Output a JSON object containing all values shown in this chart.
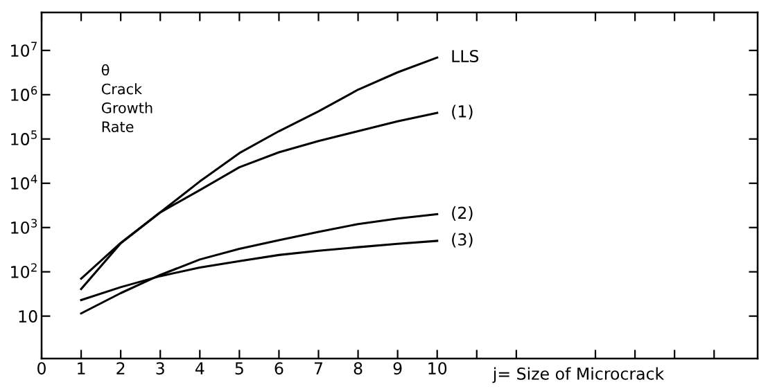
{
  "chart_data": {
    "type": "line",
    "ylabel": "θ\nCrack\nGrowth\nRate",
    "xlabel": "j= Size of Microcrack",
    "x": [
      1,
      2,
      3,
      4,
      5,
      6,
      7,
      8,
      9,
      10
    ],
    "series": [
      {
        "name": "LLS",
        "color": "#000000",
        "values": [
          41,
          440,
          2200,
          11000,
          48000,
          150000,
          420000,
          1300000,
          3200000,
          6900000
        ]
      },
      {
        "name": "(1)",
        "color": "#000000",
        "values": [
          70,
          450,
          2200,
          7000,
          23000,
          50000,
          90000,
          150000,
          250000,
          390000
        ]
      },
      {
        "name": "(2)",
        "color": "#000000",
        "values": [
          11.5,
          33,
          85,
          190,
          330,
          520,
          800,
          1200,
          1600,
          2000
        ]
      },
      {
        "name": "(3)",
        "color": "#000000",
        "values": [
          23,
          45,
          80,
          125,
          175,
          240,
          300,
          360,
          430,
          500
        ]
      }
    ],
    "log": "y",
    "xlim": [
      0,
      18.1
    ],
    "ylim": [
      1.1,
      72000000
    ],
    "xticks": [
      0,
      1,
      2,
      3,
      4,
      5,
      6,
      7,
      8,
      9,
      10,
      {
        "value": 11,
        "label": null
      },
      {
        "value": 12,
        "label": null
      },
      {
        "value": 14,
        "label": null
      },
      {
        "value": 15,
        "label": null
      },
      {
        "value": 16,
        "label": null
      },
      {
        "value": 17,
        "label": null
      }
    ],
    "yticks": [
      10,
      {
        "value": 100,
        "label": "10$^{2}$"
      },
      {
        "value": 1000,
        "label": "10$^{3}$"
      },
      {
        "value": 10000,
        "label": "10$^{4}$"
      },
      {
        "value": 100000,
        "label": "10$^{5}$"
      },
      {
        "value": 1000000,
        "label": "10$^{6}$"
      },
      {
        "value": 10000000,
        "label": "10$^{7}$"
      }
    ],
    "grid": false,
    "marker": "none",
    "line_style": "solid"
  }
}
